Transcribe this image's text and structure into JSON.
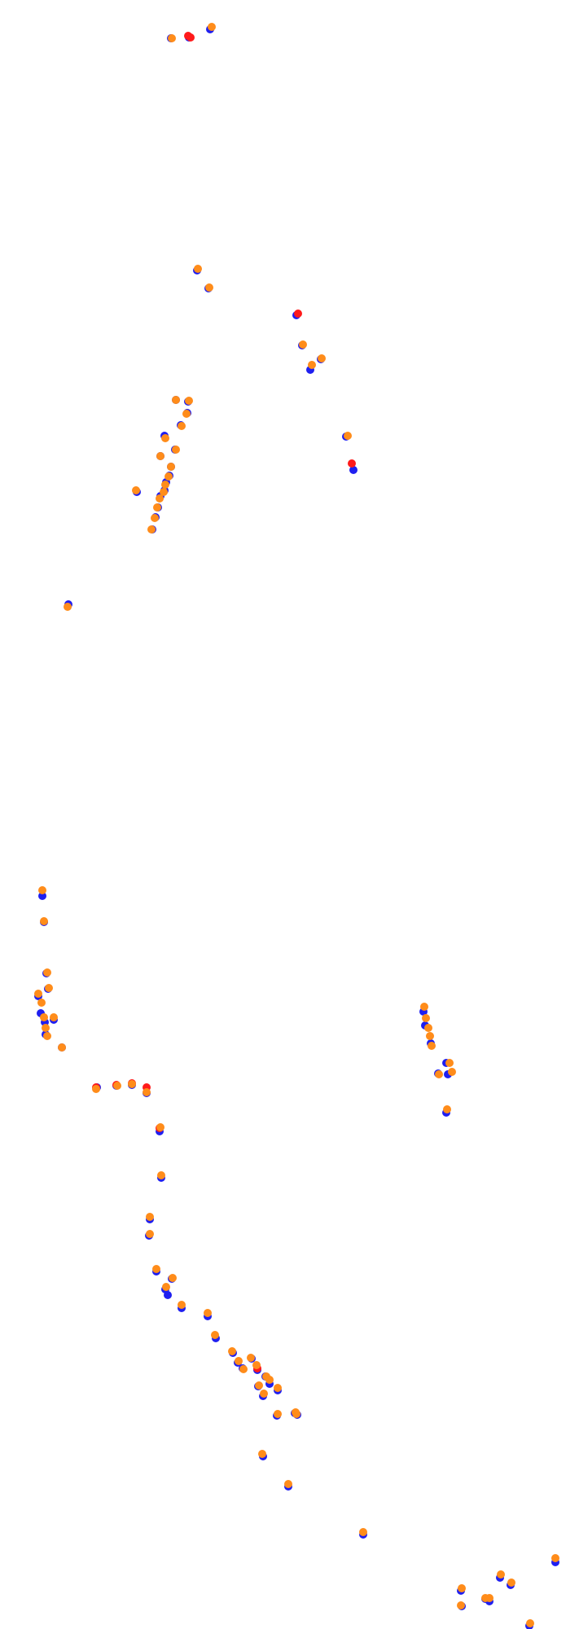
{
  "chart_data": {
    "type": "scatter",
    "title": "",
    "xlabel": "",
    "ylabel": "",
    "grid": false,
    "legend": "none",
    "axes_visible": false,
    "series": [
      {
        "color": "#1f1ff0",
        "marker": "circle",
        "points": [
          [
            210,
            45
          ],
          [
            232,
            44
          ],
          [
            258,
            34
          ],
          [
            242,
            330
          ],
          [
            256,
            352
          ],
          [
            364,
            385
          ],
          [
            371,
            422
          ],
          [
            381,
            452
          ],
          [
            394,
            439
          ],
          [
            425,
            534
          ],
          [
            434,
            575
          ],
          [
            216,
            489
          ],
          [
            231,
            491
          ],
          [
            230,
            505
          ],
          [
            222,
            520
          ],
          [
            202,
            533
          ],
          [
            215,
            550
          ],
          [
            197,
            558
          ],
          [
            210,
            571
          ],
          [
            208,
            582
          ],
          [
            204,
            590
          ],
          [
            202,
            600
          ],
          [
            197,
            607
          ],
          [
            194,
            621
          ],
          [
            191,
            633
          ],
          [
            187,
            648
          ],
          [
            168,
            602
          ],
          [
            84,
            740
          ],
          [
            52,
            1098
          ],
          [
            54,
            1130
          ],
          [
            57,
            1193
          ],
          [
            59,
            1212
          ],
          [
            47,
            1221
          ],
          [
            50,
            1242
          ],
          [
            55,
            1253
          ],
          [
            56,
            1268
          ],
          [
            66,
            1250
          ],
          [
            76,
            1284
          ],
          [
            520,
            1240
          ],
          [
            522,
            1257
          ],
          [
            529,
            1279
          ],
          [
            550,
            1317
          ],
          [
            548,
            1303
          ],
          [
            538,
            1316
          ],
          [
            548,
            1364
          ],
          [
            119,
            1333
          ],
          [
            143,
            1331
          ],
          [
            162,
            1330
          ],
          [
            180,
            1340
          ],
          [
            196,
            1387
          ],
          [
            198,
            1444
          ],
          [
            184,
            1495
          ],
          [
            183,
            1515
          ],
          [
            192,
            1559
          ],
          [
            203,
            1581
          ],
          [
            206,
            1588
          ],
          [
            211,
            1568
          ],
          [
            223,
            1604
          ],
          [
            255,
            1614
          ],
          [
            265,
            1641
          ],
          [
            286,
            1659
          ],
          [
            292,
            1671
          ],
          [
            298,
            1678
          ],
          [
            309,
            1666
          ],
          [
            316,
            1680
          ],
          [
            326,
            1688
          ],
          [
            331,
            1697
          ],
          [
            341,
            1705
          ],
          [
            317,
            1700
          ],
          [
            323,
            1712
          ],
          [
            340,
            1736
          ],
          [
            362,
            1733
          ],
          [
            365,
            1735
          ],
          [
            323,
            1786
          ],
          [
            354,
            1823
          ],
          [
            446,
            1882
          ],
          [
            566,
            1951
          ],
          [
            567,
            1970
          ],
          [
            614,
            1935
          ],
          [
            627,
            1944
          ],
          [
            596,
            1961
          ],
          [
            601,
            1964
          ],
          [
            650,
            1994
          ],
          [
            682,
            1916
          ]
        ]
      },
      {
        "color": "#ff1a1a",
        "marker": "circle",
        "points": [
          [
            231,
            44
          ],
          [
            234,
            46
          ],
          [
            366,
            385
          ],
          [
            432,
            569
          ],
          [
            180,
            1335
          ],
          [
            196,
            1385
          ],
          [
            118,
            1335
          ],
          [
            143,
            1332
          ],
          [
            162,
            1330
          ],
          [
            316,
            1680
          ]
        ]
      },
      {
        "color": "#ff8c1a",
        "marker": "circle",
        "points": [
          [
            211,
            47
          ],
          [
            260,
            33
          ],
          [
            243,
            330
          ],
          [
            257,
            353
          ],
          [
            372,
            423
          ],
          [
            383,
            448
          ],
          [
            395,
            440
          ],
          [
            427,
            535
          ],
          [
            216,
            491
          ],
          [
            232,
            492
          ],
          [
            229,
            508
          ],
          [
            223,
            523
          ],
          [
            203,
            538
          ],
          [
            216,
            552
          ],
          [
            197,
            560
          ],
          [
            210,
            573
          ],
          [
            207,
            585
          ],
          [
            203,
            595
          ],
          [
            201,
            604
          ],
          [
            196,
            612
          ],
          [
            193,
            623
          ],
          [
            190,
            636
          ],
          [
            186,
            650
          ],
          [
            167,
            602
          ],
          [
            83,
            745
          ],
          [
            52,
            1093
          ],
          [
            54,
            1131
          ],
          [
            58,
            1194
          ],
          [
            60,
            1213
          ],
          [
            47,
            1220
          ],
          [
            51,
            1231
          ],
          [
            54,
            1249
          ],
          [
            56,
            1262
          ],
          [
            58,
            1272
          ],
          [
            66,
            1249
          ],
          [
            76,
            1286
          ],
          [
            521,
            1236
          ],
          [
            523,
            1250
          ],
          [
            526,
            1262
          ],
          [
            528,
            1272
          ],
          [
            530,
            1284
          ],
          [
            552,
            1305
          ],
          [
            555,
            1316
          ],
          [
            539,
            1319
          ],
          [
            549,
            1362
          ],
          [
            118,
            1337
          ],
          [
            144,
            1333
          ],
          [
            162,
            1331
          ],
          [
            180,
            1341
          ],
          [
            197,
            1384
          ],
          [
            198,
            1443
          ],
          [
            184,
            1494
          ],
          [
            184,
            1515
          ],
          [
            192,
            1558
          ],
          [
            204,
            1580
          ],
          [
            212,
            1569
          ],
          [
            223,
            1602
          ],
          [
            255,
            1612
          ],
          [
            264,
            1639
          ],
          [
            285,
            1659
          ],
          [
            293,
            1671
          ],
          [
            299,
            1681
          ],
          [
            308,
            1667
          ],
          [
            315,
            1676
          ],
          [
            327,
            1690
          ],
          [
            331,
            1694
          ],
          [
            341,
            1704
          ],
          [
            318,
            1701
          ],
          [
            324,
            1711
          ],
          [
            341,
            1736
          ],
          [
            363,
            1734
          ],
          [
            364,
            1736
          ],
          [
            322,
            1785
          ],
          [
            354,
            1822
          ],
          [
            446,
            1881
          ],
          [
            567,
            1950
          ],
          [
            566,
            1971
          ],
          [
            615,
            1933
          ],
          [
            628,
            1943
          ],
          [
            596,
            1962
          ],
          [
            601,
            1962
          ],
          [
            651,
            1993
          ],
          [
            682,
            1913
          ]
        ]
      }
    ]
  }
}
